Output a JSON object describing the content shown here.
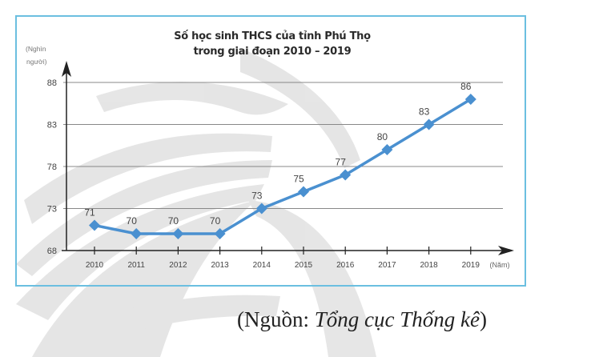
{
  "chart_data": {
    "type": "line",
    "title": "Số học sinh THCS của tỉnh Phú Thọ",
    "subtitle": "trong giai đoạn 2010 – 2019",
    "ylabel_line1": "(Nghìn",
    "ylabel_line2": "người)",
    "xlabel": "(Năm)",
    "categories": [
      "2010",
      "2011",
      "2012",
      "2013",
      "2014",
      "2015",
      "2016",
      "2017",
      "2018",
      "2019"
    ],
    "values": [
      71,
      70,
      70,
      70,
      73,
      75,
      77,
      80,
      83,
      86
    ],
    "yticks": [
      68,
      73,
      78,
      83,
      88
    ],
    "ylim": [
      68,
      88
    ],
    "grid": true,
    "legend": "none",
    "series": [
      {
        "name": "Số học sinh THCS",
        "values": [
          71,
          70,
          70,
          70,
          73,
          75,
          77,
          80,
          83,
          86
        ],
        "color": "#4a90d0"
      }
    ]
  },
  "source": {
    "prefix": "(Nguồn: ",
    "name": "Tổng cục Thống kê",
    "suffix": ")"
  },
  "colors": {
    "frame": "#6bbfe0",
    "line": "#4a90d0",
    "axis": "#222222",
    "grid": "#888888",
    "text": "#444444"
  }
}
